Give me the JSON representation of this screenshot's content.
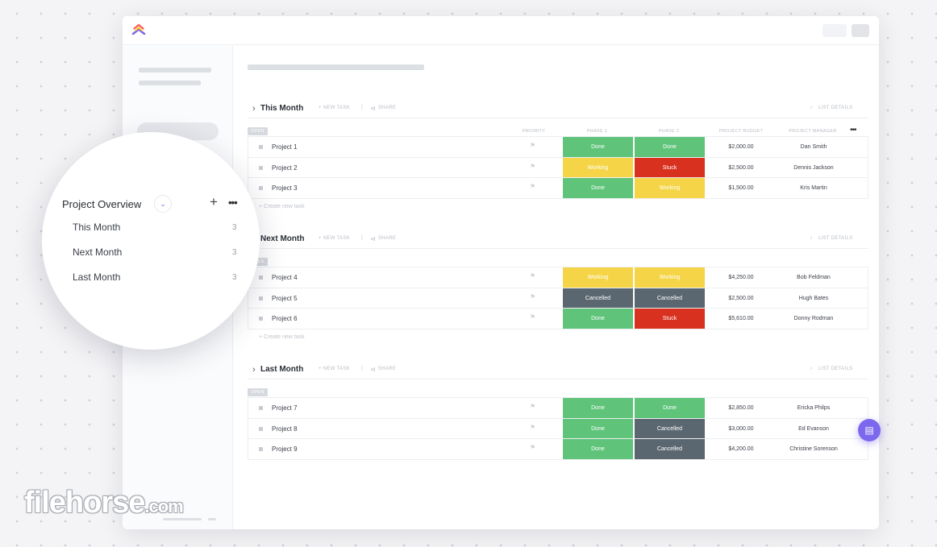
{
  "sidebar_zoom": {
    "title": "Project Overview",
    "items": [
      {
        "label": "This Month",
        "count": "3"
      },
      {
        "label": "Next Month",
        "count": "3"
      },
      {
        "label": "Last Month",
        "count": "3"
      }
    ]
  },
  "toolbar": {
    "new_task": "+ NEW TASK",
    "share": "SHARE",
    "list_details": "LIST DETAILS",
    "create_new_task": "+ Create new task"
  },
  "columns": {
    "priority": "PRIORITY",
    "phase1": "PHASE 1",
    "phase2": "PHASE 2",
    "budget": "PROJECT BUDGET",
    "manager": "PROJECT MANAGER"
  },
  "status_colors": {
    "Done": "#5fc47a",
    "Working": "#f5d547",
    "Stuck": "#d9311f",
    "Cancelled": "#5b6770"
  },
  "accent_color": "#7b68ee",
  "groups": [
    {
      "title": "This Month",
      "badge": "OPEN",
      "rows": [
        {
          "name": "Project 1",
          "phase1": "Done",
          "phase2": "Done",
          "budget": "$2,000.00",
          "manager": "Dan Smith"
        },
        {
          "name": "Project 2",
          "phase1": "Working",
          "phase2": "Stuck",
          "budget": "$2,500.00",
          "manager": "Dennis Jackson"
        },
        {
          "name": "Project 3",
          "phase1": "Done",
          "phase2": "Working",
          "budget": "$1,500.00",
          "manager": "Kris Martin"
        }
      ]
    },
    {
      "title": "Next Month",
      "badge": "OPEN",
      "rows": [
        {
          "name": "Project 4",
          "phase1": "Working",
          "phase2": "Working",
          "budget": "$4,250.00",
          "manager": "Bob Feldman"
        },
        {
          "name": "Project 5",
          "phase1": "Cancelled",
          "phase2": "Cancelled",
          "budget": "$2,500.00",
          "manager": "Hugh Bates"
        },
        {
          "name": "Project 6",
          "phase1": "Done",
          "phase2": "Stuck",
          "budget": "$5,610.00",
          "manager": "Donny Rodman"
        }
      ]
    },
    {
      "title": "Last Month",
      "badge": "OPEN",
      "rows": [
        {
          "name": "Project 7",
          "phase1": "Done",
          "phase2": "Done",
          "budget": "$2,850.00",
          "manager": "Ericka Philps"
        },
        {
          "name": "Project 8",
          "phase1": "Done",
          "phase2": "Cancelled",
          "budget": "$3,000.00",
          "manager": "Ed Evanson"
        },
        {
          "name": "Project 9",
          "phase1": "Done",
          "phase2": "Cancelled",
          "budget": "$4,200.00",
          "manager": "Christine Sorenson"
        }
      ]
    }
  ],
  "watermark": {
    "brand": "filehorse",
    "suffix": ".com"
  }
}
